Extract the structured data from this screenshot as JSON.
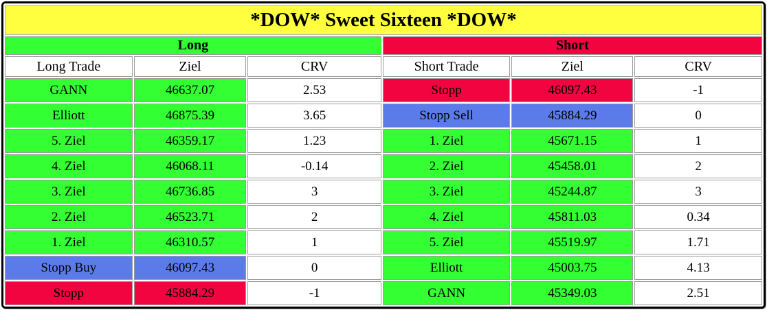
{
  "title": "*DOW* Sweet Sixteen *DOW*",
  "colors": {
    "title_bg": "#ffff40",
    "green": "#33ff33",
    "red": "#f20441",
    "blue": "#5b7bea",
    "cell_border": "#9c9c9c",
    "outer_border": "#000000"
  },
  "long": {
    "header": "Long",
    "columns": [
      "Long Trade",
      "Ziel",
      "CRV"
    ],
    "rows": [
      {
        "label": "GANN",
        "ziel": "46637.07",
        "crv": "2.53",
        "color": "green"
      },
      {
        "label": "Elliott",
        "ziel": "46875.39",
        "crv": "3.65",
        "color": "green"
      },
      {
        "label": "5. Ziel",
        "ziel": "46359.17",
        "crv": "1.23",
        "color": "green"
      },
      {
        "label": "4. Ziel",
        "ziel": "46068.11",
        "crv": "-0.14",
        "color": "green"
      },
      {
        "label": "3. Ziel",
        "ziel": "46736.85",
        "crv": "3",
        "color": "green"
      },
      {
        "label": "2. Ziel",
        "ziel": "46523.71",
        "crv": "2",
        "color": "green"
      },
      {
        "label": "1. Ziel",
        "ziel": "46310.57",
        "crv": "1",
        "color": "green"
      },
      {
        "label": "Stopp Buy",
        "ziel": "46097.43",
        "crv": "0",
        "color": "blue"
      },
      {
        "label": "Stopp",
        "ziel": "45884.29",
        "crv": "-1",
        "color": "red"
      }
    ]
  },
  "short": {
    "header": "Short",
    "columns": [
      "Short Trade",
      "Ziel",
      "CRV"
    ],
    "rows": [
      {
        "label": "Stopp",
        "ziel": "46097.43",
        "crv": "-1",
        "color": "red"
      },
      {
        "label": "Stopp Sell",
        "ziel": "45884.29",
        "crv": "0",
        "color": "blue"
      },
      {
        "label": "1. Ziel",
        "ziel": "45671.15",
        "crv": "1",
        "color": "green"
      },
      {
        "label": "2. Ziel",
        "ziel": "45458.01",
        "crv": "2",
        "color": "green"
      },
      {
        "label": "3. Ziel",
        "ziel": "45244.87",
        "crv": "3",
        "color": "green"
      },
      {
        "label": "4. Ziel",
        "ziel": "45811.03",
        "crv": "0.34",
        "color": "green"
      },
      {
        "label": "5. Ziel",
        "ziel": "45519.97",
        "crv": "1.71",
        "color": "green"
      },
      {
        "label": "Elliott",
        "ziel": "45003.75",
        "crv": "4.13",
        "color": "green"
      },
      {
        "label": "GANN",
        "ziel": "45349.03",
        "crv": "2.51",
        "color": "green"
      }
    ]
  }
}
